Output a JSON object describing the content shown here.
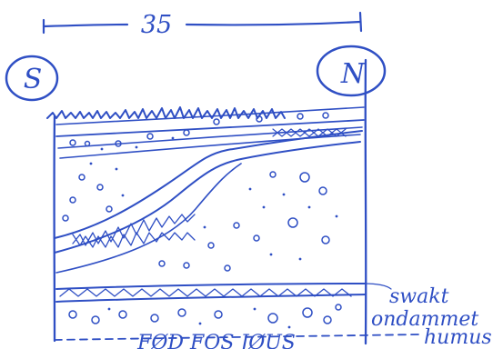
{
  "diagram": {
    "width_label": "35",
    "left_compass": "S",
    "right_compass": "N",
    "labels": [
      "swakt",
      "ondammet",
      "humus"
    ],
    "bottom_text": "FØD FOS JØUS",
    "ink_color": "#2f4fc4",
    "paper_color": "#ffffff"
  }
}
